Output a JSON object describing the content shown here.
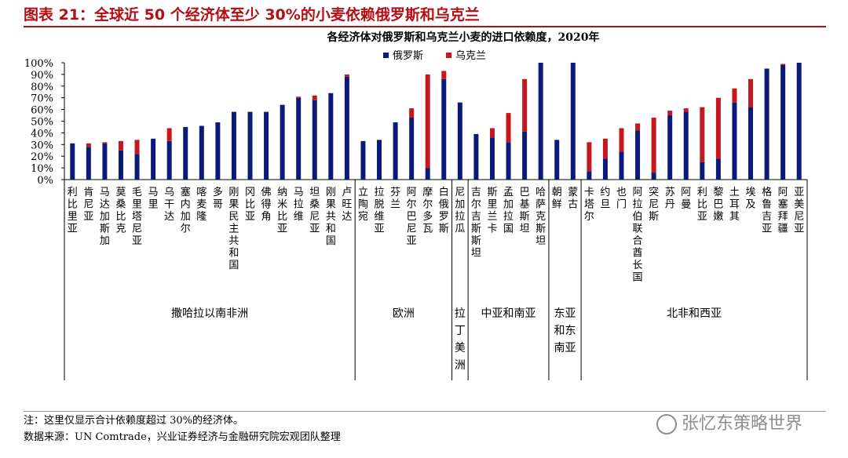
{
  "figure": {
    "title": "图表 21：全球近 50 个经济体至少 30%的小麦依赖俄罗斯和乌克兰",
    "note": "注：这里仅显示合计依赖度超过 30%的经济体。",
    "source": "数据来源：UN Comtrade，兴业证券经济与金融研究院宏观团队整理",
    "watermark": "张忆东策略世界"
  },
  "chart_data": {
    "type": "bar",
    "stacked": true,
    "title": "各经济体对俄罗斯和乌克兰小麦的进口依赖度，2020年",
    "ylim": [
      0,
      100
    ],
    "yticks": [
      "0%",
      "10%",
      "20%",
      "30%",
      "40%",
      "50%",
      "60%",
      "70%",
      "80%",
      "90%",
      "100%"
    ],
    "legend_position": "top-center",
    "colors": {
      "russia": "#0b1a7a",
      "ukraine": "#c8161d"
    },
    "series": [
      {
        "name": "俄罗斯",
        "values": [
          31,
          28,
          31,
          25,
          22,
          35,
          33,
          45,
          46,
          49,
          58,
          58,
          58,
          64,
          70,
          68,
          74,
          88,
          33,
          34,
          49,
          53,
          10,
          86,
          66,
          39,
          36,
          32,
          41,
          100,
          34,
          100,
          7,
          18,
          24,
          42,
          6,
          55,
          58,
          15,
          18,
          66,
          62,
          95,
          98,
          100
        ]
      },
      {
        "name": "乌克兰",
        "values": [
          0,
          3,
          1,
          8,
          12,
          0,
          11,
          0,
          0,
          0,
          0,
          0,
          0,
          0,
          1,
          4,
          0,
          2,
          0,
          0,
          0,
          8,
          80,
          7,
          0,
          0,
          8,
          25,
          45,
          0,
          0,
          0,
          25,
          17,
          20,
          6,
          47,
          4,
          3,
          47,
          52,
          12,
          24,
          0,
          1,
          0
        ]
      }
    ],
    "categories": [
      "利比里亚",
      "肯尼亚",
      "马达加斯加",
      "莫桑比克",
      "毛里塔尼亚",
      "马里",
      "乌干达",
      "塞内加尔",
      "喀麦隆",
      "多哥",
      "刚果民主共和国",
      "冈比亚",
      "佛得角",
      "纳米比亚",
      "马拉维",
      "坦桑尼亚",
      "刚果共和国",
      "卢旺达",
      "立陶宛",
      "拉脱维亚",
      "芬兰",
      "阿尔巴尼亚",
      "摩尔多瓦",
      "白俄罗斯",
      "尼加拉瓜",
      "吉尔吉斯斯坦",
      "斯里兰卡",
      "孟加拉国",
      "巴基斯坦",
      "哈萨克斯坦",
      "朝鲜",
      "蒙古",
      "卡塔尔",
      "约旦",
      "也门",
      "阿拉伯联合酋长国",
      "突尼斯",
      "苏丹",
      "阿曼",
      "利比亚",
      "黎巴嫩",
      "土耳其",
      "埃及",
      "格鲁吉亚",
      "阿塞拜疆",
      "亚美尼亚"
    ],
    "groups": [
      {
        "name": "撒哈拉以南非洲",
        "count": 18
      },
      {
        "name": "欧洲",
        "count": 6
      },
      {
        "name": "拉丁美洲",
        "count": 1
      },
      {
        "name": "中亚和南亚",
        "count": 5
      },
      {
        "name": "东亚和东南亚",
        "count": 2
      },
      {
        "name": "北非和西亚",
        "count": 14
      }
    ]
  }
}
